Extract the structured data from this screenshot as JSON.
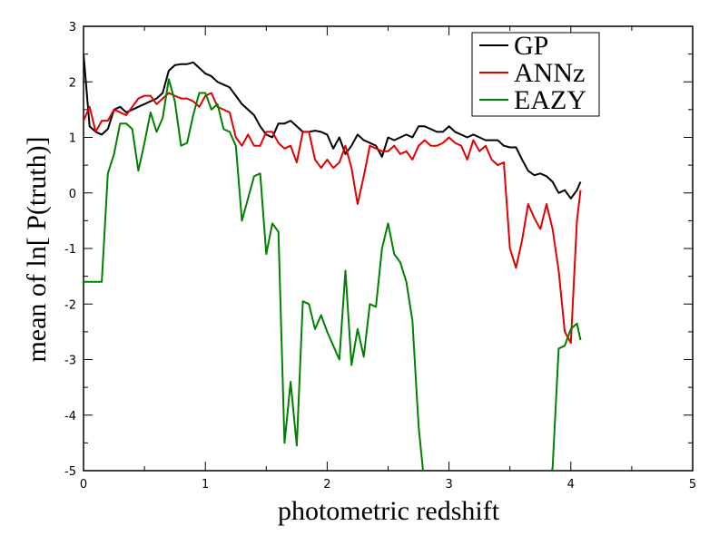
{
  "chart_data": {
    "type": "line",
    "xlabel": "photometric redshift",
    "ylabel": "mean of ln[ P(truth)]",
    "xlim": [
      0,
      5
    ],
    "ylim": [
      -5,
      3
    ],
    "x_ticks": [
      "0",
      "1",
      "2",
      "3",
      "4",
      "5"
    ],
    "y_ticks": [
      "-5",
      "-4",
      "-3",
      "-2",
      "-1",
      "0",
      "1",
      "2",
      "3"
    ],
    "grid": false,
    "legend_position": "top-right",
    "series": [
      {
        "name": "GP",
        "color": "#000000",
        "x": [
          0.0,
          0.05,
          0.1,
          0.15,
          0.2,
          0.25,
          0.3,
          0.35,
          0.4,
          0.45,
          0.5,
          0.55,
          0.6,
          0.65,
          0.7,
          0.75,
          0.8,
          0.85,
          0.9,
          0.95,
          1.0,
          1.05,
          1.1,
          1.15,
          1.2,
          1.25,
          1.3,
          1.35,
          1.4,
          1.45,
          1.5,
          1.55,
          1.6,
          1.65,
          1.7,
          1.75,
          1.8,
          1.85,
          1.9,
          1.95,
          2.0,
          2.05,
          2.1,
          2.15,
          2.2,
          2.25,
          2.3,
          2.35,
          2.4,
          2.45,
          2.5,
          2.55,
          2.6,
          2.65,
          2.7,
          2.75,
          2.8,
          2.85,
          2.9,
          2.95,
          3.0,
          3.05,
          3.1,
          3.15,
          3.2,
          3.25,
          3.3,
          3.35,
          3.4,
          3.45,
          3.5,
          3.55,
          3.6,
          3.65,
          3.7,
          3.75,
          3.8,
          3.85,
          3.9,
          3.95,
          4.0,
          4.05,
          4.08
        ],
        "y": [
          2.5,
          1.2,
          1.1,
          1.05,
          1.15,
          1.5,
          1.55,
          1.45,
          1.5,
          1.55,
          1.6,
          1.65,
          1.7,
          1.8,
          2.2,
          2.3,
          2.32,
          2.32,
          2.35,
          2.25,
          2.15,
          2.1,
          2.0,
          1.95,
          1.9,
          1.75,
          1.6,
          1.5,
          1.4,
          1.2,
          1.05,
          1.0,
          1.25,
          1.25,
          1.3,
          1.2,
          1.1,
          1.1,
          1.12,
          1.1,
          1.05,
          0.8,
          1.0,
          0.7,
          0.85,
          1.05,
          0.95,
          0.9,
          0.85,
          0.65,
          1.0,
          0.95,
          1.0,
          1.05,
          1.0,
          1.2,
          1.2,
          1.15,
          1.1,
          1.1,
          1.2,
          1.1,
          1.05,
          1.0,
          1.05,
          1.0,
          0.95,
          0.95,
          0.95,
          0.85,
          0.82,
          0.82,
          0.6,
          0.4,
          0.32,
          0.35,
          0.3,
          0.2,
          0.0,
          0.05,
          -0.1,
          0.05,
          0.2
        ]
      },
      {
        "name": "ANNz",
        "color": "#e00000",
        "x": [
          0.0,
          0.05,
          0.1,
          0.15,
          0.2,
          0.25,
          0.3,
          0.35,
          0.4,
          0.45,
          0.5,
          0.55,
          0.6,
          0.65,
          0.7,
          0.75,
          0.8,
          0.85,
          0.9,
          0.95,
          1.0,
          1.05,
          1.1,
          1.15,
          1.2,
          1.25,
          1.3,
          1.35,
          1.4,
          1.45,
          1.5,
          1.55,
          1.6,
          1.65,
          1.7,
          1.75,
          1.8,
          1.85,
          1.9,
          1.95,
          2.0,
          2.05,
          2.1,
          2.15,
          2.2,
          2.25,
          2.3,
          2.35,
          2.4,
          2.45,
          2.5,
          2.55,
          2.6,
          2.65,
          2.7,
          2.75,
          2.8,
          2.85,
          2.9,
          2.95,
          3.0,
          3.05,
          3.1,
          3.15,
          3.2,
          3.25,
          3.3,
          3.35,
          3.4,
          3.45,
          3.5,
          3.55,
          3.6,
          3.65,
          3.7,
          3.75,
          3.8,
          3.85,
          3.9,
          3.95,
          4.0,
          4.05,
          4.08
        ],
        "y": [
          1.3,
          1.55,
          1.1,
          1.3,
          1.3,
          1.5,
          1.45,
          1.4,
          1.55,
          1.7,
          1.75,
          1.75,
          1.6,
          1.7,
          1.8,
          1.75,
          1.7,
          1.7,
          1.65,
          1.55,
          1.75,
          1.8,
          1.55,
          1.5,
          1.45,
          1.0,
          0.85,
          1.05,
          0.85,
          0.85,
          1.1,
          1.1,
          0.9,
          0.8,
          0.85,
          0.55,
          1.1,
          1.1,
          0.6,
          0.45,
          0.6,
          0.45,
          0.55,
          0.85,
          0.45,
          -0.2,
          0.3,
          0.85,
          0.8,
          0.75,
          0.75,
          0.85,
          0.7,
          0.75,
          0.6,
          0.85,
          0.95,
          0.85,
          0.85,
          0.9,
          1.0,
          0.9,
          0.85,
          0.6,
          0.95,
          0.75,
          0.85,
          0.6,
          0.5,
          0.55,
          -1.0,
          -1.35,
          -0.85,
          -0.2,
          -0.45,
          -0.65,
          -0.2,
          -0.65,
          -1.4,
          -2.5,
          -2.7,
          -0.5,
          0.05
        ]
      },
      {
        "name": "EAZY",
        "color": "#008000",
        "x": [
          0.0,
          0.05,
          0.1,
          0.15,
          0.2,
          0.25,
          0.3,
          0.35,
          0.4,
          0.45,
          0.5,
          0.55,
          0.6,
          0.65,
          0.7,
          0.75,
          0.8,
          0.85,
          0.9,
          0.95,
          1.0,
          1.05,
          1.1,
          1.15,
          1.2,
          1.25,
          1.3,
          1.35,
          1.4,
          1.45,
          1.5,
          1.55,
          1.6,
          1.65,
          1.7,
          1.75,
          1.8,
          1.85,
          1.9,
          1.95,
          2.0,
          2.05,
          2.1,
          2.15,
          2.2,
          2.25,
          2.3,
          2.35,
          2.4,
          2.45,
          2.5,
          2.55,
          2.6,
          2.65,
          2.7,
          2.75,
          2.8,
          3.81,
          3.85,
          3.9,
          3.95,
          4.0,
          4.05,
          4.08
        ],
        "y": [
          -1.6,
          -1.6,
          -1.6,
          -1.6,
          0.35,
          0.7,
          1.25,
          1.25,
          1.15,
          0.4,
          0.9,
          1.45,
          1.1,
          1.35,
          2.05,
          1.65,
          0.85,
          0.9,
          1.4,
          1.8,
          1.8,
          1.5,
          1.6,
          1.15,
          1.1,
          0.85,
          -0.5,
          -0.1,
          0.3,
          0.35,
          -1.1,
          -0.55,
          -0.7,
          -4.5,
          -3.4,
          -4.55,
          -1.95,
          -2.0,
          -2.45,
          -2.2,
          -2.5,
          -2.75,
          -3.0,
          -1.4,
          -3.1,
          -2.45,
          -2.95,
          -2.0,
          -2.05,
          -1.0,
          -0.55,
          -1.1,
          -1.25,
          -1.6,
          -2.3,
          -4.2,
          -5.3,
          -5.3,
          -4.95,
          -2.8,
          -2.75,
          -2.45,
          -2.35,
          -2.65
        ]
      }
    ]
  }
}
